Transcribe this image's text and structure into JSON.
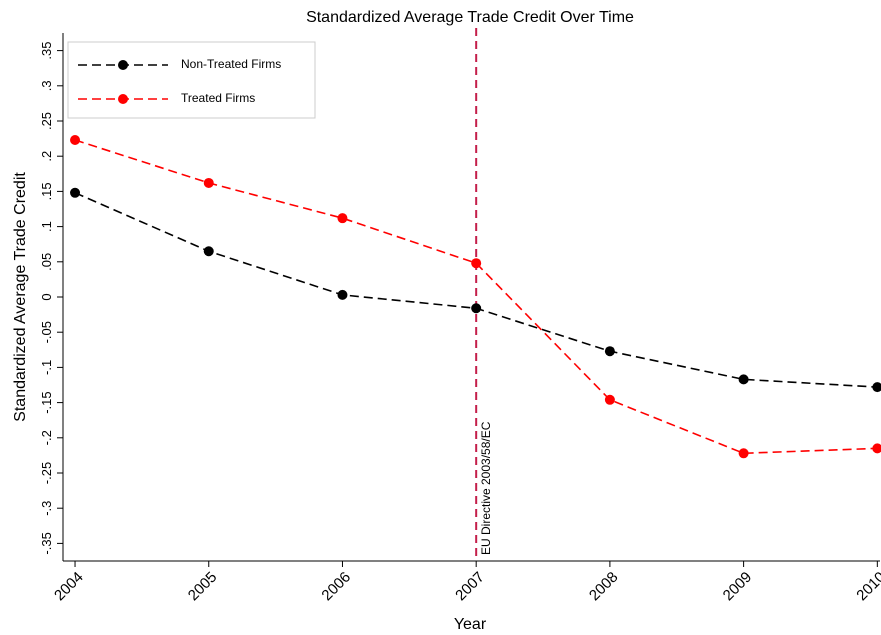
{
  "chart_data": {
    "type": "line",
    "title": "Standardized Average Trade Credit Over Time",
    "xlabel": "Year",
    "ylabel": "Standardized Average Trade Credit",
    "x": [
      2004,
      2005,
      2006,
      2007,
      2008,
      2009,
      2010
    ],
    "series": [
      {
        "name": "Non-Treated Firms",
        "color": "#000000",
        "values": [
          0.148,
          0.065,
          0.003,
          -0.016,
          -0.077,
          -0.117,
          -0.128
        ]
      },
      {
        "name": "Treated Firms",
        "color": "#ff0000",
        "values": [
          0.223,
          0.162,
          0.112,
          0.048,
          -0.146,
          -0.222,
          -0.215
        ]
      }
    ],
    "xlim": [
      2003.91,
      2010.02
    ],
    "xticks": [
      2004,
      2005,
      2006,
      2007,
      2008,
      2009,
      2010
    ],
    "ylim": [
      -0.375,
      0.375
    ],
    "yticks": [
      {
        "value": -0.35,
        "label": "-.35"
      },
      {
        "value": -0.3,
        "label": "-.3"
      },
      {
        "value": -0.25,
        "label": "-.25"
      },
      {
        "value": -0.2,
        "label": "-.2"
      },
      {
        "value": -0.15,
        "label": "-.15"
      },
      {
        "value": -0.1,
        "label": "-.1"
      },
      {
        "value": -0.05,
        "label": "-.05"
      },
      0,
      {
        "value": 0.05,
        "label": ".05"
      },
      {
        "value": 0.1,
        "label": ".1"
      },
      {
        "value": 0.15,
        "label": ".15"
      },
      {
        "value": 0.2,
        "label": ".2"
      },
      {
        "value": 0.25,
        "label": ".25"
      },
      {
        "value": 0.3,
        "label": ".3"
      },
      {
        "value": 0.35,
        "label": ".35"
      }
    ],
    "annotations": [
      {
        "x": 2007,
        "text": "EU Directive 2003/58/EC",
        "color": "#c41e4a"
      }
    ],
    "grid": false,
    "legend": "upper left"
  }
}
